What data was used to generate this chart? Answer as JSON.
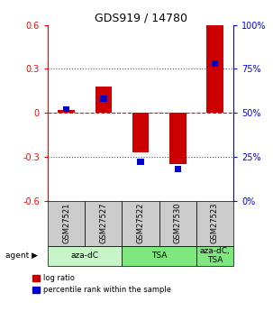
{
  "title": "GDS919 / 14780",
  "samples": [
    "GSM27521",
    "GSM27527",
    "GSM27522",
    "GSM27530",
    "GSM27523"
  ],
  "log_ratios": [
    0.02,
    0.18,
    -0.27,
    -0.35,
    0.6
  ],
  "percentile_ranks": [
    52,
    58,
    22,
    18,
    78
  ],
  "agents": [
    {
      "label": "aza-dC",
      "start": 0,
      "end": 2,
      "color": "#c8f5c8"
    },
    {
      "label": "TSA",
      "start": 2,
      "end": 4,
      "color": "#7ee87e"
    },
    {
      "label": "aza-dC,\nTSA",
      "start": 4,
      "end": 5,
      "color": "#7ee87e"
    }
  ],
  "bar_color_red": "#cc0000",
  "bar_color_blue": "#0000cc",
  "ylim_left": [
    -0.6,
    0.6
  ],
  "ylim_right": [
    0,
    100
  ],
  "yticks_left": [
    -0.6,
    -0.3,
    0.0,
    0.3,
    0.6
  ],
  "ytick_labels_left": [
    "-0.6",
    "-0.3",
    "0",
    "0.3",
    "0.6"
  ],
  "yticks_right": [
    0,
    25,
    50,
    75,
    100
  ],
  "ytick_labels_right": [
    "0%",
    "25%",
    "50%",
    "75%",
    "100%"
  ],
  "hline_dotted": [
    -0.3,
    0.3
  ],
  "hline_dashed_red": 0.0,
  "grid_color": "#555555",
  "bg_color": "#ffffff",
  "sample_box_color": "#cccccc",
  "bar_width": 0.45,
  "blue_marker_size": 0.18
}
